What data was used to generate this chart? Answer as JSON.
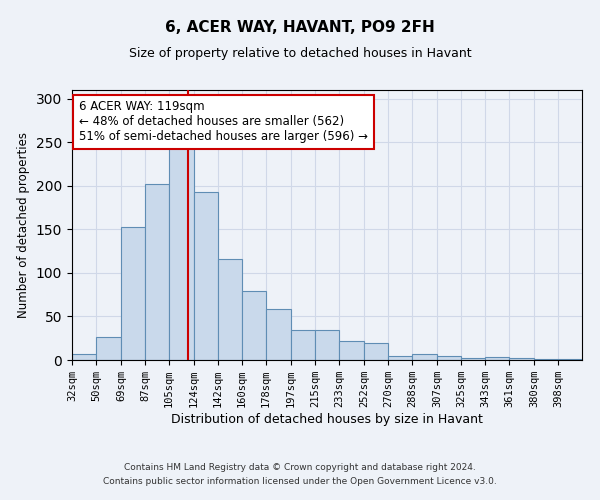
{
  "title1": "6, ACER WAY, HAVANT, PO9 2FH",
  "title2": "Size of property relative to detached houses in Havant",
  "xlabel": "Distribution of detached houses by size in Havant",
  "ylabel": "Number of detached properties",
  "bin_labels": [
    "32sqm",
    "50sqm",
    "69sqm",
    "87sqm",
    "105sqm",
    "124sqm",
    "142sqm",
    "160sqm",
    "178sqm",
    "197sqm",
    "215sqm",
    "233sqm",
    "252sqm",
    "270sqm",
    "288sqm",
    "307sqm",
    "325sqm",
    "343sqm",
    "361sqm",
    "380sqm",
    "398sqm"
  ],
  "bin_edges": [
    32,
    50,
    69,
    87,
    105,
    124,
    142,
    160,
    178,
    197,
    215,
    233,
    252,
    270,
    288,
    307,
    325,
    343,
    361,
    380,
    398,
    416
  ],
  "bar_heights": [
    7,
    26,
    153,
    202,
    250,
    193,
    116,
    79,
    58,
    35,
    35,
    22,
    20,
    5,
    7,
    5,
    2,
    4,
    2,
    1,
    1
  ],
  "bar_color": "#c9d9eb",
  "bar_edge_color": "#5f8db4",
  "property_line_x": 119,
  "annotation_text": "6 ACER WAY: 119sqm\n← 48% of detached houses are smaller (562)\n51% of semi-detached houses are larger (596) →",
  "annotation_box_color": "#ffffff",
  "annotation_box_edge_color": "#cc0000",
  "red_line_color": "#cc0000",
  "grid_color": "#d0d8e8",
  "background_color": "#eef2f8",
  "plot_bg_color": "#eef2f8",
  "ylim": [
    0,
    310
  ],
  "yticks": [
    0,
    50,
    100,
    150,
    200,
    250,
    300
  ],
  "footer1": "Contains HM Land Registry data © Crown copyright and database right 2024.",
  "footer2": "Contains public sector information licensed under the Open Government Licence v3.0."
}
